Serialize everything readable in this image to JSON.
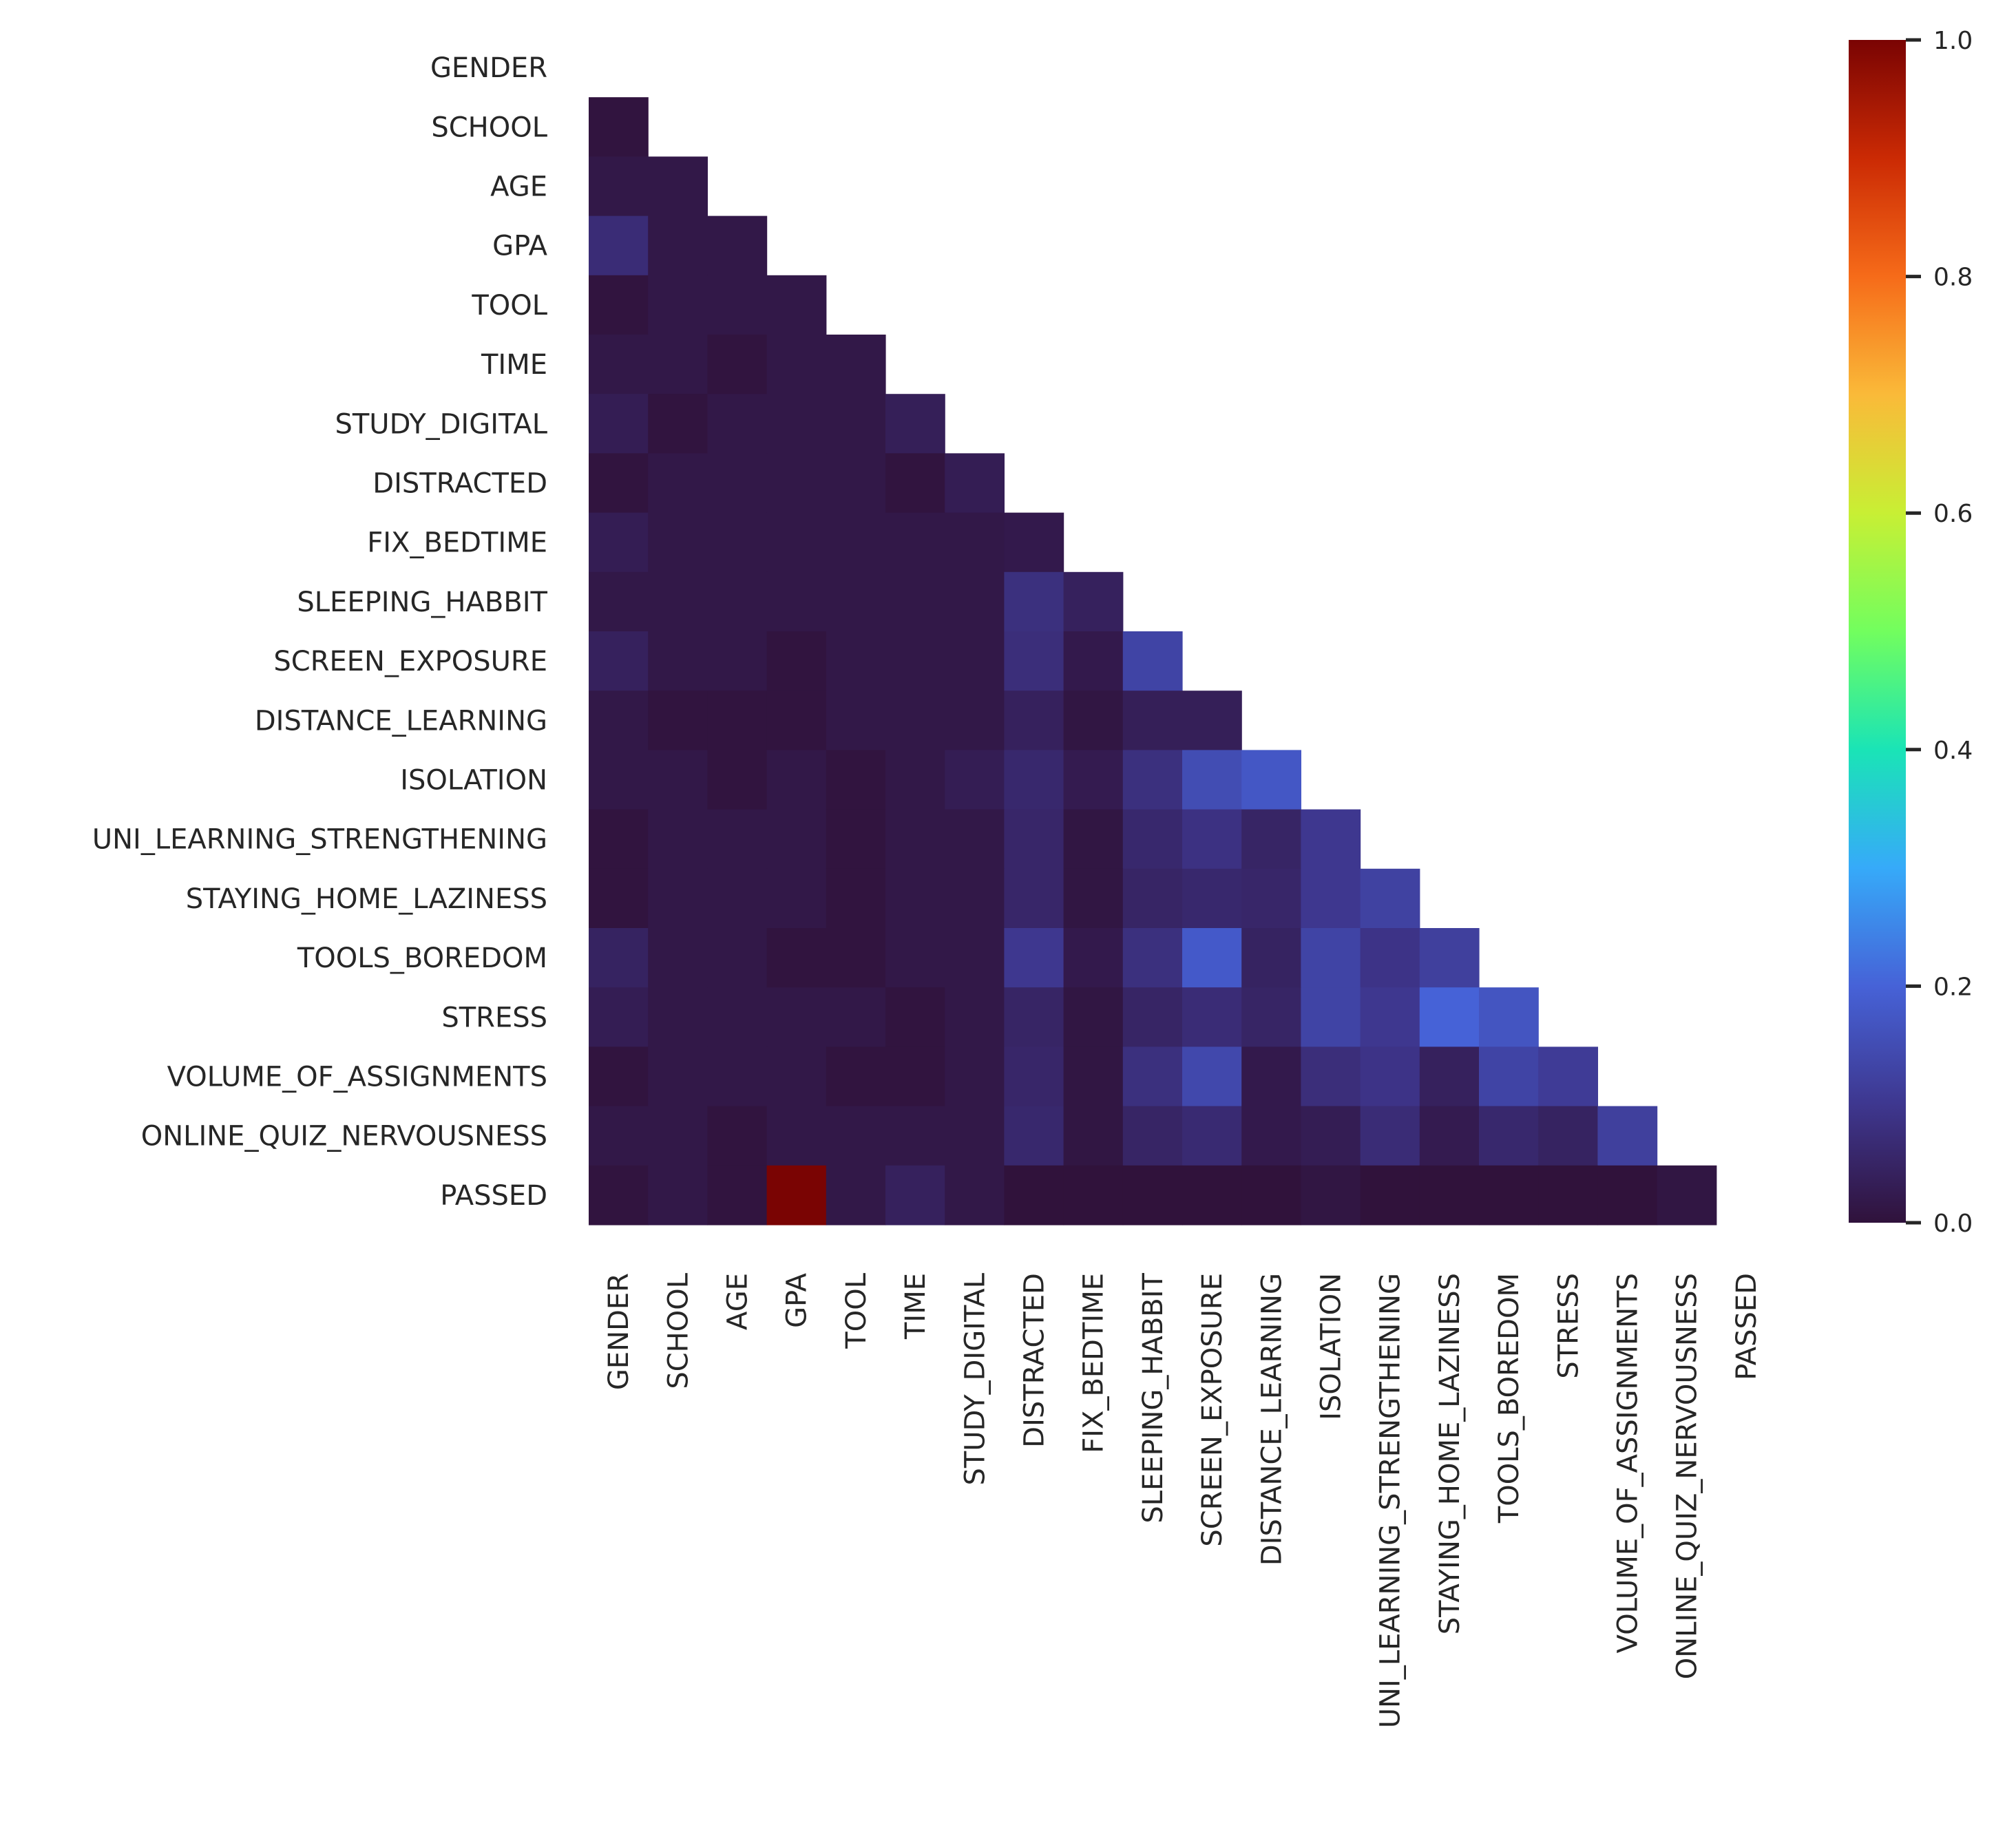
{
  "chart_data": {
    "type": "heatmap",
    "title": "",
    "xlabel": "",
    "ylabel": "",
    "mask": "upper-triangle-including-diagonal",
    "colormap": "turbo",
    "colormap_stops": [
      "#30123b",
      "#3e378f",
      "#4662d7",
      "#36aaf9",
      "#1ae4b6",
      "#72fe5e",
      "#c8ef34",
      "#faba39",
      "#f66b19",
      "#cb2a04",
      "#7a0403"
    ],
    "labels": [
      "GENDER",
      "SCHOOL",
      "AGE",
      "GPA",
      "TOOL",
      "TIME",
      "STUDY_DIGITAL",
      "DISTRACTED",
      "FIX_BEDTIME",
      "SLEEPING_HABBIT",
      "SCREEN_EXPOSURE",
      "DISTANCE_LEARNING",
      "ISOLATION",
      "UNI_LEARNING_STRENGTHENING",
      "STAYING_HOME_LAZINESS",
      "TOOLS_BOREDOM",
      "STRESS",
      "VOLUME_OF_ASSIGNMENTS",
      "ONLINE_QUIZ_NERVOUSNESS",
      "PASSED"
    ],
    "values": [
      [],
      [
        0.005
      ],
      [
        0.015,
        0.015
      ],
      [
        0.07,
        0.015,
        0.015
      ],
      [
        0.005,
        0.015,
        0.015,
        0.015
      ],
      [
        0.015,
        0.015,
        0.005,
        0.015,
        0.015
      ],
      [
        0.03,
        0.005,
        0.015,
        0.015,
        0.015,
        0.035
      ],
      [
        0.005,
        0.015,
        0.015,
        0.015,
        0.015,
        0.005,
        0.03
      ],
      [
        0.03,
        0.015,
        0.015,
        0.015,
        0.015,
        0.015,
        0.015,
        0.02
      ],
      [
        0.015,
        0.015,
        0.015,
        0.015,
        0.015,
        0.015,
        0.015,
        0.08,
        0.04
      ],
      [
        0.04,
        0.015,
        0.015,
        0.005,
        0.015,
        0.015,
        0.015,
        0.075,
        0.02,
        0.13
      ],
      [
        0.015,
        0.005,
        0.005,
        0.005,
        0.015,
        0.015,
        0.015,
        0.04,
        0.01,
        0.035,
        0.035
      ],
      [
        0.015,
        0.015,
        0.005,
        0.015,
        0.005,
        0.015,
        0.03,
        0.06,
        0.025,
        0.08,
        0.15,
        0.175
      ],
      [
        0.005,
        0.015,
        0.015,
        0.015,
        0.005,
        0.015,
        0.015,
        0.055,
        0.01,
        0.06,
        0.085,
        0.05,
        0.1
      ],
      [
        0.005,
        0.015,
        0.015,
        0.015,
        0.005,
        0.015,
        0.015,
        0.055,
        0.01,
        0.05,
        0.06,
        0.055,
        0.1,
        0.125
      ],
      [
        0.045,
        0.015,
        0.015,
        0.005,
        0.005,
        0.015,
        0.015,
        0.1,
        0.02,
        0.08,
        0.18,
        0.045,
        0.13,
        0.09,
        0.12
      ],
      [
        0.03,
        0.015,
        0.015,
        0.015,
        0.015,
        0.005,
        0.015,
        0.05,
        0.01,
        0.05,
        0.07,
        0.05,
        0.13,
        0.1,
        0.2,
        0.17
      ],
      [
        0.005,
        0.015,
        0.015,
        0.015,
        0.005,
        0.005,
        0.015,
        0.055,
        0.01,
        0.08,
        0.14,
        0.02,
        0.075,
        0.09,
        0.04,
        0.13,
        0.11
      ],
      [
        0.015,
        0.015,
        0.005,
        0.015,
        0.015,
        0.015,
        0.015,
        0.06,
        0.01,
        0.05,
        0.065,
        0.02,
        0.03,
        0.07,
        0.025,
        0.06,
        0.045,
        0.12
      ],
      [
        0.005,
        0.015,
        0.005,
        1.0,
        0.015,
        0.04,
        0.015,
        0.0,
        0.0,
        0.0,
        0.0,
        0.0,
        0.01,
        0.0,
        0.0,
        0.0,
        0.0,
        0.0,
        0.01
      ]
    ],
    "colorbar": {
      "range": [
        0.0,
        1.0
      ],
      "ticks": [
        0.0,
        0.2,
        0.4,
        0.6,
        0.8,
        1.0
      ],
      "tick_labels": [
        "0.0",
        "0.2",
        "0.4",
        "0.6",
        "0.8",
        "1.0"
      ]
    }
  }
}
